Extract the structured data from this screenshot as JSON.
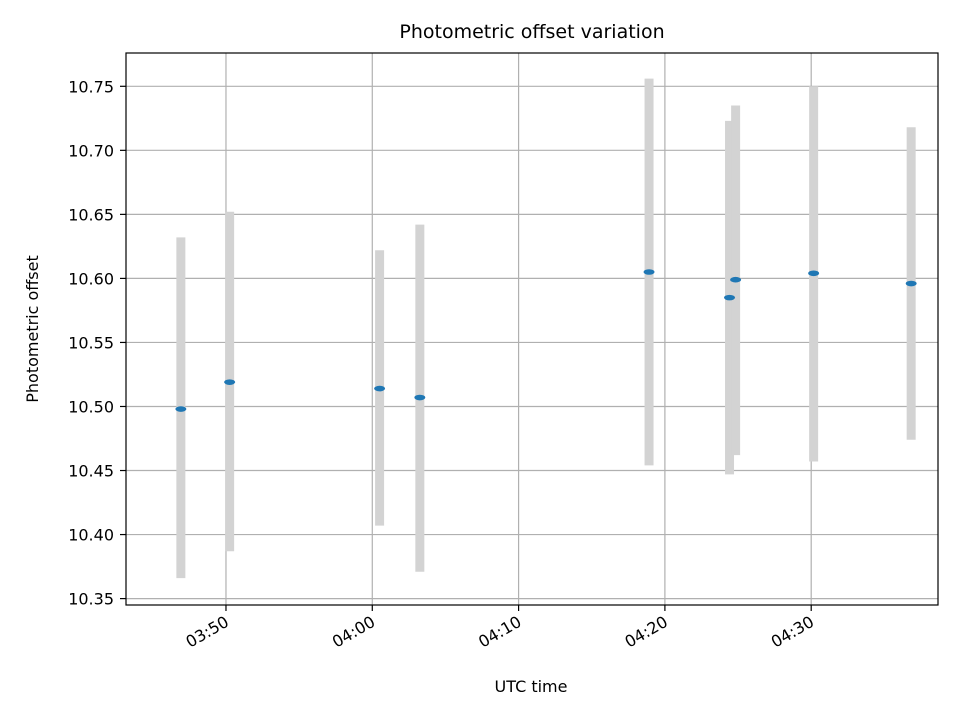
{
  "chart_data": {
    "type": "scatter",
    "title": "Photometric offset variation",
    "xlabel": "UTC time",
    "ylabel": "Photometric offset",
    "x_unit": "HH:MM UTC",
    "xlim": [
      "03:43:10",
      "04:38:40"
    ],
    "ylim": [
      10.345,
      10.776
    ],
    "x_ticks": [
      "03:50",
      "04:00",
      "04:10",
      "04:20",
      "04:30"
    ],
    "y_ticks": [
      "10.35",
      "10.40",
      "10.45",
      "10.50",
      "10.55",
      "10.60",
      "10.65",
      "10.70",
      "10.75"
    ],
    "grid": true,
    "legend": "none",
    "colors": {
      "points": "#1f77b4",
      "error_bars": "#d3d3d3",
      "grid": "#b0b0b0"
    },
    "series": [
      {
        "points": [
          {
            "x": "03:46:55",
            "y": 10.498,
            "yerr_low": 10.366,
            "yerr_high": 10.632
          },
          {
            "x": "03:50:15",
            "y": 10.519,
            "yerr_low": 10.387,
            "yerr_high": 10.652
          },
          {
            "x": "04:00:30",
            "y": 10.514,
            "yerr_low": 10.407,
            "yerr_high": 10.622
          },
          {
            "x": "04:03:15",
            "y": 10.507,
            "yerr_low": 10.371,
            "yerr_high": 10.642
          },
          {
            "x": "04:18:55",
            "y": 10.605,
            "yerr_low": 10.454,
            "yerr_high": 10.756
          },
          {
            "x": "04:24:25",
            "y": 10.585,
            "yerr_low": 10.447,
            "yerr_high": 10.723
          },
          {
            "x": "04:24:50",
            "y": 10.599,
            "yerr_low": 10.462,
            "yerr_high": 10.735
          },
          {
            "x": "04:30:10",
            "y": 10.604,
            "yerr_low": 10.457,
            "yerr_high": 10.75
          },
          {
            "x": "04:36:50",
            "y": 10.596,
            "yerr_low": 10.474,
            "yerr_high": 10.718
          }
        ]
      }
    ]
  }
}
